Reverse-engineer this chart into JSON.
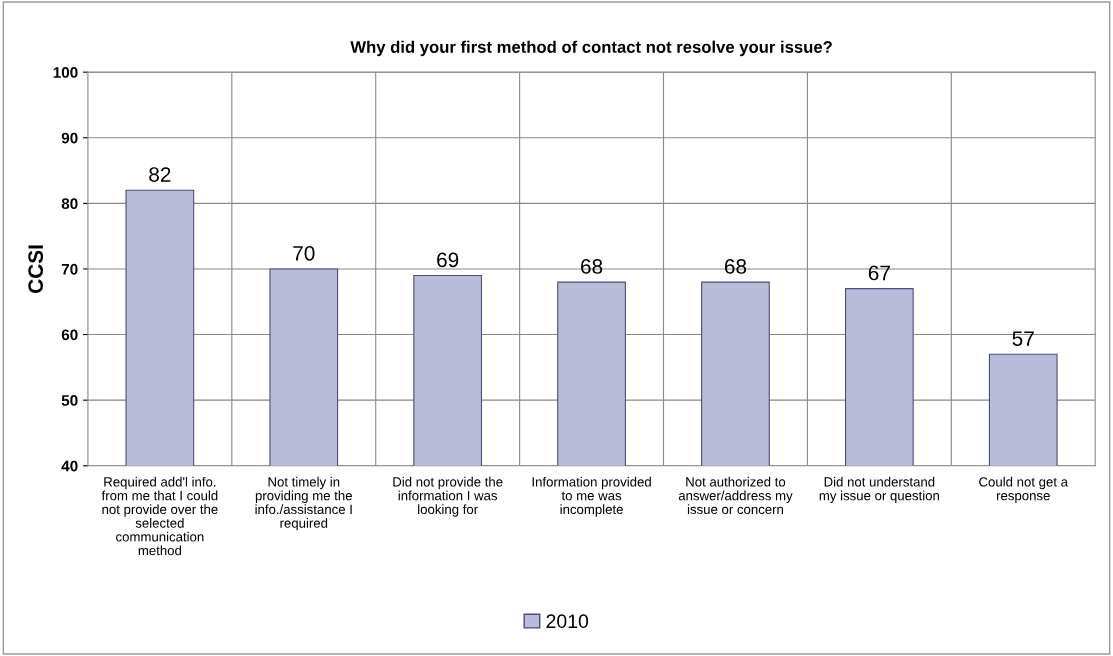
{
  "chart_data": {
    "type": "bar",
    "title": "Why did your first method of contact not resolve your issue?",
    "ylabel": "CCSI",
    "categories": [
      "Required add'l info.\nfrom me that I could\nnot provide over the\nselected\ncommunication\nmethod",
      "Not timely in\nproviding me the\ninfo./assistance I\nrequired",
      "Did not provide the\ninformation I was\nlooking for",
      "Information provided\nto me was\nincomplete",
      "Not authorized to\nanswer/address my\nissue or concern",
      "Did not understand\nmy issue or question",
      "Could not get a\nresponse"
    ],
    "series": [
      {
        "name": "2010",
        "color": "#b8bcd9",
        "values": [
          82,
          70,
          69,
          68,
          68,
          67,
          57
        ]
      }
    ],
    "data_labels": true,
    "ylim": [
      40,
      100
    ],
    "yticks": [
      40,
      50,
      60,
      70,
      80,
      90,
      100
    ],
    "grid": true,
    "legend": "bottom"
  }
}
